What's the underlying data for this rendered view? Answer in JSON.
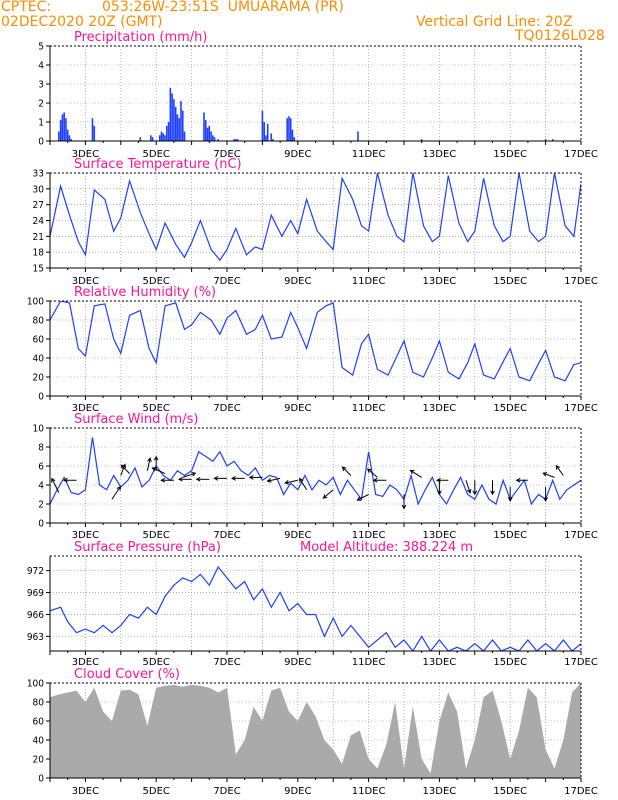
{
  "header": {
    "source": "CPTEC:",
    "location": "053:26W-23:51S  UMUARAMA (PR)",
    "init": "02DEC2020 20Z (GMT)",
    "grid_note": "Vertical Grid Line: 20Z",
    "run_id": "TQ0126L028"
  },
  "chart_data": [
    {
      "type": "bar",
      "title": "Precipitation (mm/h)",
      "color": "#1f3fff",
      "ylim": [
        0,
        5
      ],
      "yticks": [
        0,
        1,
        2,
        3,
        4,
        5
      ],
      "xlabels": [
        "3DEC",
        "5DEC",
        "7DEC",
        "9DEC",
        "11DEC",
        "13DEC",
        "15DEC",
        "17DEC"
      ],
      "xlabel_pos": [
        1,
        3,
        5,
        7,
        9,
        11,
        13,
        15
      ],
      "xlim": [
        0,
        15
      ],
      "grid": true,
      "x": [
        0.25,
        0.3,
        0.35,
        0.4,
        0.45,
        0.5,
        0.55,
        0.6,
        1.2,
        1.25,
        2.55,
        2.85,
        2.9,
        3.1,
        3.15,
        3.2,
        3.25,
        3.3,
        3.35,
        3.4,
        3.45,
        3.5,
        3.55,
        3.6,
        3.65,
        3.7,
        3.75,
        3.8,
        4.35,
        4.4,
        4.45,
        4.5,
        4.55,
        4.6,
        4.65,
        4.75,
        5.2,
        5.25,
        5.3,
        6.0,
        6.05,
        6.1,
        6.15,
        6.25,
        6.3,
        6.7,
        6.75,
        6.8,
        6.85,
        6.9,
        8.7,
        10.5,
        14.0,
        14.2
      ],
      "values": [
        0.5,
        1.1,
        1.4,
        1.5,
        1.2,
        0.6,
        0.3,
        0.1,
        1.2,
        0.8,
        0.2,
        0.3,
        0.2,
        0.3,
        0.5,
        0.4,
        0.3,
        0.8,
        1.0,
        2.8,
        2.5,
        2.2,
        1.8,
        1.4,
        1.2,
        2.1,
        1.6,
        0.5,
        1.5,
        1.1,
        0.7,
        0.8,
        0.5,
        0.3,
        0.2,
        0.1,
        0.1,
        0.1,
        0.1,
        1.6,
        1.0,
        0.3,
        0.9,
        0.4,
        0.1,
        1.2,
        1.3,
        1.2,
        0.6,
        0.2,
        0.5,
        0.1,
        0.1,
        0.1
      ]
    },
    {
      "type": "line",
      "title": "Surface Temperature (nC)",
      "color": "#1f3fff",
      "ylim": [
        15,
        33
      ],
      "yticks": [
        15,
        18,
        21,
        24,
        27,
        30,
        33
      ],
      "xlabels": [
        "3DEC",
        "5DEC",
        "7DEC",
        "9DEC",
        "11DEC",
        "13DEC",
        "15DEC",
        "17DEC"
      ],
      "xlabel_pos": [
        1,
        3,
        5,
        7,
        9,
        11,
        13,
        15
      ],
      "xlim": [
        0,
        15
      ],
      "grid": true,
      "x": [
        0,
        0.3,
        0.55,
        0.8,
        1.0,
        1.25,
        1.55,
        1.8,
        2.0,
        2.25,
        2.55,
        2.8,
        3.0,
        3.25,
        3.55,
        3.8,
        4.0,
        4.25,
        4.55,
        4.8,
        5.0,
        5.25,
        5.55,
        5.8,
        6.0,
        6.25,
        6.55,
        6.8,
        7.0,
        7.25,
        7.55,
        7.8,
        8.0,
        8.25,
        8.55,
        8.8,
        9.0,
        9.25,
        9.55,
        9.8,
        10.0,
        10.25,
        10.55,
        10.8,
        11.0,
        11.25,
        11.55,
        11.8,
        12.0,
        12.25,
        12.55,
        12.8,
        13.0,
        13.25,
        13.55,
        13.8,
        14.0,
        14.25,
        14.55,
        14.8,
        15.0
      ],
      "values": [
        21,
        30.5,
        25,
        20,
        17.5,
        29.8,
        28,
        22,
        24.5,
        31.5,
        25.5,
        21.5,
        18.5,
        23.5,
        19.5,
        17,
        19.8,
        24,
        18.5,
        16.5,
        18.5,
        22.5,
        17.5,
        19,
        18.5,
        25,
        21,
        24,
        21.5,
        28,
        22,
        20,
        18.5,
        32,
        28,
        23,
        22,
        33,
        25,
        21,
        20,
        33,
        23,
        20,
        21,
        32.5,
        23.5,
        20,
        22,
        32,
        23,
        20,
        21,
        33,
        22,
        20,
        21,
        33,
        23,
        21,
        31
      ]
    },
    {
      "type": "line",
      "title": "Relative Humidity (%)",
      "color": "#1f3fff",
      "ylim": [
        0,
        100
      ],
      "yticks": [
        0,
        20,
        40,
        60,
        80,
        100
      ],
      "xlabels": [
        "3DEC",
        "5DEC",
        "7DEC",
        "9DEC",
        "11DEC",
        "13DEC",
        "15DEC",
        "17DEC"
      ],
      "xlabel_pos": [
        1,
        3,
        5,
        7,
        9,
        11,
        13,
        15
      ],
      "xlim": [
        0,
        15
      ],
      "grid": true,
      "x": [
        0,
        0.3,
        0.55,
        0.8,
        1.0,
        1.25,
        1.55,
        1.8,
        2.0,
        2.25,
        2.55,
        2.8,
        3.0,
        3.25,
        3.55,
        3.8,
        4.0,
        4.25,
        4.55,
        4.8,
        5.0,
        5.25,
        5.55,
        5.8,
        6.0,
        6.25,
        6.55,
        6.8,
        7.0,
        7.25,
        7.55,
        7.8,
        8.0,
        8.25,
        8.55,
        8.8,
        9.0,
        9.25,
        9.55,
        9.8,
        10.0,
        10.25,
        10.55,
        10.8,
        11.0,
        11.25,
        11.55,
        11.8,
        12.0,
        12.25,
        12.55,
        12.8,
        13.0,
        13.25,
        13.55,
        13.8,
        14.0,
        14.25,
        14.55,
        14.8,
        15.0
      ],
      "values": [
        80,
        100,
        98,
        50,
        42,
        95,
        97,
        60,
        45,
        85,
        90,
        50,
        35,
        95,
        98,
        70,
        75,
        88,
        80,
        65,
        82,
        90,
        65,
        70,
        85,
        60,
        62,
        88,
        72,
        50,
        88,
        95,
        98,
        30,
        22,
        55,
        65,
        28,
        22,
        42,
        58,
        25,
        20,
        40,
        58,
        25,
        18,
        35,
        55,
        22,
        18,
        36,
        50,
        20,
        16,
        34,
        48,
        20,
        16,
        33,
        35
      ]
    },
    {
      "type": "line",
      "title": "Surface Wind (m/s)",
      "color": "#1f3fff",
      "ylim": [
        0,
        10
      ],
      "yticks": [
        0,
        2,
        4,
        6,
        8,
        10
      ],
      "xlabels": [
        "3DEC",
        "5DEC",
        "7DEC",
        "9DEC",
        "11DEC",
        "13DEC",
        "15DEC",
        "17DEC"
      ],
      "xlabel_pos": [
        1,
        3,
        5,
        7,
        9,
        11,
        13,
        15
      ],
      "xlim": [
        0,
        15
      ],
      "grid": true,
      "x": [
        0,
        0.2,
        0.4,
        0.6,
        0.8,
        1.0,
        1.2,
        1.4,
        1.6,
        1.8,
        2.0,
        2.2,
        2.4,
        2.6,
        2.8,
        3.0,
        3.2,
        3.4,
        3.6,
        3.8,
        4.0,
        4.2,
        4.4,
        4.6,
        4.8,
        5.0,
        5.2,
        5.4,
        5.6,
        5.8,
        6.0,
        6.2,
        6.4,
        6.6,
        6.8,
        7.0,
        7.2,
        7.4,
        7.6,
        7.8,
        8.0,
        8.2,
        8.4,
        8.6,
        8.8,
        9.0,
        9.2,
        9.4,
        9.6,
        9.8,
        10.0,
        10.2,
        10.4,
        10.6,
        10.8,
        11.0,
        11.2,
        11.4,
        11.6,
        11.8,
        12.0,
        12.2,
        12.4,
        12.6,
        12.8,
        13.0,
        13.2,
        13.4,
        13.6,
        13.8,
        14.0,
        14.2,
        14.4,
        14.6,
        14.8,
        15.0
      ],
      "values": [
        2,
        3.5,
        4.8,
        3.2,
        3.0,
        3.5,
        9,
        4.0,
        3.5,
        5.0,
        3.8,
        4.5,
        5.8,
        3.8,
        4.5,
        6.0,
        5.0,
        4.5,
        5.5,
        5.0,
        5.5,
        7.5,
        7.0,
        6.5,
        7.5,
        6.0,
        6.5,
        5.5,
        5.0,
        5.8,
        4.5,
        5.0,
        4.8,
        3.0,
        4.2,
        3.5,
        5.0,
        3.5,
        4.5,
        4.0,
        4.8,
        3.0,
        4.5,
        3.5,
        2.5,
        7.5,
        3.0,
        2.8,
        4.0,
        3.5,
        2.5,
        5.0,
        2.0,
        3.5,
        4.8,
        3.0,
        2.0,
        3.5,
        4.8,
        3.0,
        2.5,
        4.0,
        2.5,
        2.0,
        4.5,
        2.5,
        3.5,
        4.5,
        2.0,
        3.0,
        2.5,
        4.5,
        2.5,
        3.5,
        4.0,
        4.5
      ],
      "arrows": [
        {
          "x": 0.25,
          "y": 3.2,
          "u": -0.5,
          "v": 1.0
        },
        {
          "x": 0.75,
          "y": 4.5,
          "u": -0.9,
          "v": 0.0
        },
        {
          "x": 1.75,
          "y": 2.5,
          "u": 0.6,
          "v": 0.9
        },
        {
          "x": 2.0,
          "y": 5.0,
          "u": 0.3,
          "v": 0.8
        },
        {
          "x": 2.25,
          "y": 5.2,
          "u": -0.6,
          "v": 0.6
        },
        {
          "x": 2.75,
          "y": 5.5,
          "u": 0.2,
          "v": 0.9
        },
        {
          "x": 3.0,
          "y": 5.5,
          "u": 0.0,
          "v": 1.0
        },
        {
          "x": 3.25,
          "y": 5.2,
          "u": -0.9,
          "v": 0.4
        },
        {
          "x": 3.5,
          "y": 4.5,
          "u": -0.9,
          "v": 0.0
        },
        {
          "x": 3.75,
          "y": 4.8,
          "u": 0.9,
          "v": 0.3
        },
        {
          "x": 4.0,
          "y": 4.6,
          "u": -0.9,
          "v": 0.0
        },
        {
          "x": 4.5,
          "y": 4.6,
          "u": -0.9,
          "v": 0.0
        },
        {
          "x": 5.0,
          "y": 4.7,
          "u": -0.9,
          "v": 0.0
        },
        {
          "x": 5.5,
          "y": 4.7,
          "u": -0.9,
          "v": 0.0
        },
        {
          "x": 6.0,
          "y": 4.8,
          "u": -0.9,
          "v": 0.0
        },
        {
          "x": 6.5,
          "y": 4.7,
          "u": -0.9,
          "v": -0.2
        },
        {
          "x": 7.0,
          "y": 4.5,
          "u": -0.9,
          "v": -0.2
        },
        {
          "x": 7.25,
          "y": 3.5,
          "u": -0.5,
          "v": 0.8
        },
        {
          "x": 8.0,
          "y": 3.5,
          "u": -0.7,
          "v": -0.6
        },
        {
          "x": 8.5,
          "y": 5.0,
          "u": -0.6,
          "v": 0.6
        },
        {
          "x": 9.0,
          "y": 3.0,
          "u": -0.8,
          "v": -0.4
        },
        {
          "x": 9.25,
          "y": 4.8,
          "u": -0.7,
          "v": 0.6
        },
        {
          "x": 9.5,
          "y": 4.5,
          "u": -0.9,
          "v": 0.0
        },
        {
          "x": 10.0,
          "y": 3.0,
          "u": 0.0,
          "v": -1.0
        },
        {
          "x": 10.5,
          "y": 4.8,
          "u": -0.8,
          "v": 0.5
        },
        {
          "x": 11.0,
          "y": 4.5,
          "u": 0.0,
          "v": -1.0
        },
        {
          "x": 11.25,
          "y": 4.5,
          "u": -0.8,
          "v": 0.0
        },
        {
          "x": 11.75,
          "y": 4.5,
          "u": 0.3,
          "v": -0.9
        },
        {
          "x": 12.0,
          "y": 4.5,
          "u": 0.0,
          "v": -1.0
        },
        {
          "x": 12.5,
          "y": 4.5,
          "u": 0.0,
          "v": -1.0
        },
        {
          "x": 13.0,
          "y": 3.8,
          "u": 0.0,
          "v": -1.0
        },
        {
          "x": 13.5,
          "y": 4.5,
          "u": -0.8,
          "v": 0.0
        },
        {
          "x": 14.0,
          "y": 3.8,
          "u": 0.0,
          "v": -1.0
        },
        {
          "x": 14.25,
          "y": 4.8,
          "u": -0.8,
          "v": 0.3
        },
        {
          "x": 14.5,
          "y": 5.0,
          "u": -0.5,
          "v": 0.7
        }
      ]
    },
    {
      "type": "line",
      "title": "Surface Pressure (hPa)",
      "annotation": "Model Altitude: 388.224 m",
      "color": "#1f3fff",
      "ylim": [
        961,
        974
      ],
      "yticks": [
        963,
        966,
        969,
        972
      ],
      "xlabels": [
        "3DEC",
        "5DEC",
        "7DEC",
        "9DEC",
        "11DEC",
        "13DEC",
        "15DEC",
        "17DEC"
      ],
      "xlabel_pos": [
        1,
        3,
        5,
        7,
        9,
        11,
        13,
        15
      ],
      "xlim": [
        0,
        15
      ],
      "grid": true,
      "x": [
        0,
        0.3,
        0.5,
        0.75,
        1.0,
        1.25,
        1.5,
        1.75,
        2.0,
        2.25,
        2.5,
        2.75,
        3.0,
        3.25,
        3.5,
        3.75,
        4.0,
        4.25,
        4.5,
        4.75,
        5.0,
        5.25,
        5.5,
        5.75,
        6.0,
        6.25,
        6.5,
        6.75,
        7.0,
        7.25,
        7.5,
        7.75,
        8.0,
        8.25,
        8.5,
        8.75,
        9.0,
        9.25,
        9.5,
        9.75,
        10.0,
        10.25,
        10.5,
        10.75,
        11.0,
        11.25,
        11.5,
        11.75,
        12.0,
        12.25,
        12.5,
        12.75,
        13.0,
        13.25,
        13.5,
        13.75,
        14.0,
        14.25,
        14.5,
        14.75,
        15.0
      ],
      "values": [
        966.5,
        967,
        965,
        963.5,
        964,
        963.5,
        964.5,
        963.5,
        964.5,
        966,
        965.5,
        967,
        966,
        968.5,
        970,
        971,
        970.5,
        971.5,
        970,
        972.5,
        971,
        969.5,
        970.5,
        968,
        969.5,
        967,
        969,
        966.5,
        967.5,
        966,
        966,
        963,
        965.5,
        963,
        964.5,
        963,
        961.5,
        962.5,
        963.5,
        961.5,
        962.5,
        961,
        963,
        961,
        962.5,
        961,
        961.5,
        961,
        962,
        961,
        962.5,
        961,
        961.5,
        961,
        962.5,
        961,
        962,
        961,
        962.5,
        961,
        962
      ]
    },
    {
      "type": "area",
      "title": "Cloud Cover (%)",
      "color": "#aaaaaa",
      "ylim": [
        0,
        100
      ],
      "yticks": [
        0,
        20,
        40,
        60,
        80,
        100
      ],
      "xlabels": [
        "3DEC",
        "5DEC",
        "7DEC",
        "9DEC",
        "11DEC",
        "13DEC",
        "15DEC",
        "17DEC"
      ],
      "xlabel_pos": [
        1,
        3,
        5,
        7,
        9,
        11,
        13,
        15
      ],
      "xlim": [
        0,
        15
      ],
      "grid": true,
      "x": [
        0,
        0.25,
        0.5,
        0.75,
        1.0,
        1.25,
        1.5,
        1.75,
        2.0,
        2.25,
        2.5,
        2.75,
        3.0,
        3.25,
        3.5,
        3.75,
        4.0,
        4.25,
        4.5,
        4.75,
        5.0,
        5.25,
        5.5,
        5.75,
        6.0,
        6.25,
        6.5,
        6.75,
        7.0,
        7.25,
        7.5,
        7.75,
        8.0,
        8.25,
        8.5,
        8.75,
        9.0,
        9.25,
        9.5,
        9.75,
        10.0,
        10.25,
        10.5,
        10.75,
        11.0,
        11.25,
        11.5,
        11.75,
        12.0,
        12.25,
        12.5,
        12.75,
        13.0,
        13.25,
        13.5,
        13.75,
        14.0,
        14.25,
        14.5,
        14.75,
        15.0
      ],
      "values": [
        85,
        88,
        90,
        92,
        80,
        95,
        70,
        60,
        92,
        93,
        88,
        55,
        95,
        97,
        98,
        96,
        98,
        97,
        95,
        90,
        95,
        25,
        40,
        75,
        60,
        92,
        95,
        70,
        60,
        80,
        65,
        40,
        30,
        15,
        45,
        50,
        20,
        10,
        35,
        80,
        10,
        75,
        20,
        5,
        60,
        90,
        70,
        10,
        40,
        85,
        92,
        60,
        20,
        50,
        95,
        85,
        30,
        10,
        40,
        90,
        100
      ]
    }
  ]
}
